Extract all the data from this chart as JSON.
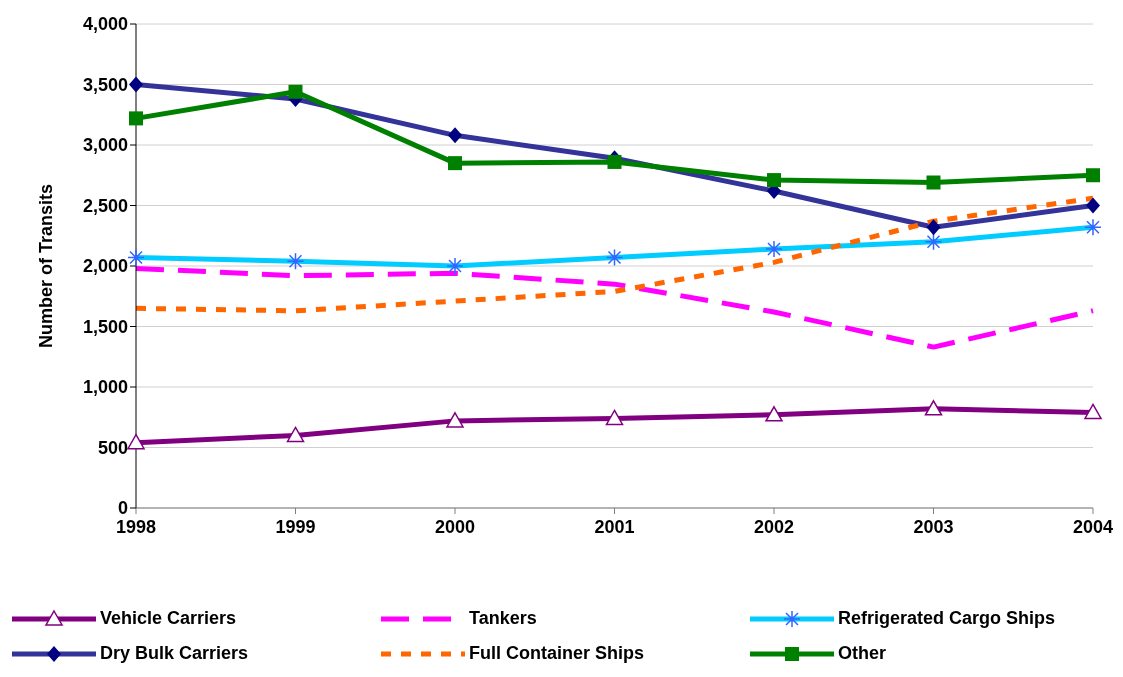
{
  "chart_data": {
    "type": "line",
    "ylabel": "Number of Transits",
    "categories": [
      "1998",
      "1999",
      "2000",
      "2001",
      "2002",
      "2003",
      "2004"
    ],
    "series": [
      {
        "name": "Vehicle Carriers",
        "color": "#800080",
        "marker": "triangle",
        "line_style": "solid",
        "values": [
          540,
          600,
          720,
          740,
          770,
          820,
          790
        ]
      },
      {
        "name": "Tankers",
        "color": "#ff00ff",
        "marker": "none",
        "line_style": "dashed",
        "values": [
          1980,
          1920,
          1940,
          1850,
          1620,
          1330,
          1630
        ]
      },
      {
        "name": "Refrigerated Cargo Ships",
        "color": "#00ccff",
        "marker": "cross",
        "line_style": "solid",
        "values": [
          2070,
          2040,
          2000,
          2070,
          2140,
          2200,
          2320
        ]
      },
      {
        "name": "Dry Bulk Carriers",
        "color": "#333399",
        "marker": "diamond",
        "line_style": "solid",
        "values": [
          3500,
          3380,
          3080,
          2890,
          2620,
          2320,
          2500
        ]
      },
      {
        "name": "Full Container Ships",
        "color": "#ff6600",
        "marker": "none",
        "line_style": "dotted",
        "values": [
          1650,
          1630,
          1710,
          1790,
          2030,
          2370,
          2560
        ]
      },
      {
        "name": "Other",
        "color": "#008000",
        "marker": "square",
        "line_style": "solid",
        "values": [
          3220,
          3440,
          2850,
          2860,
          2710,
          2690,
          2750
        ]
      }
    ],
    "ylim": [
      0,
      4000
    ],
    "yticks": [
      0,
      500,
      {
        "value": 1000,
        "label": "1,000"
      },
      {
        "value": 1500,
        "label": "1,500"
      },
      {
        "value": 2000,
        "label": "2,000"
      },
      {
        "value": 2500,
        "label": "2,500"
      },
      {
        "value": 3000,
        "label": "3,000"
      },
      {
        "value": 3500,
        "label": "3,500"
      },
      {
        "value": 4000,
        "label": "4,000"
      }
    ],
    "grid": "y",
    "legend": "bottom"
  }
}
